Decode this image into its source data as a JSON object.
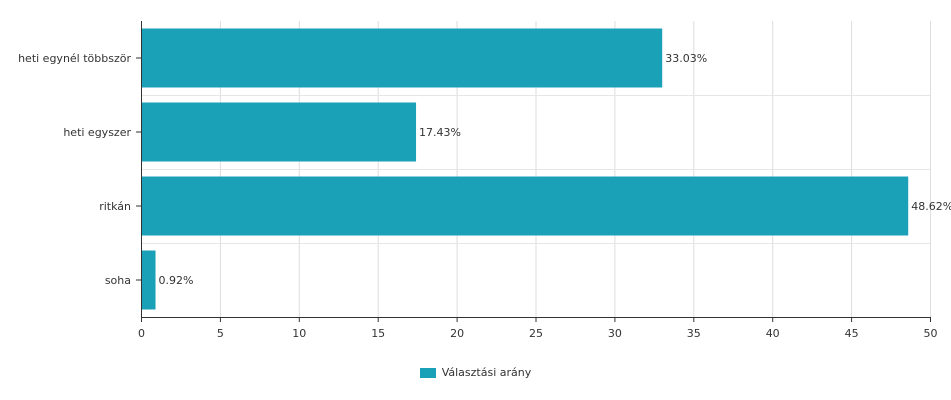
{
  "chart_data": {
    "type": "bar",
    "orientation": "horizontal",
    "categories": [
      "heti egynél többször",
      "heti egyszer",
      "ritkán",
      "soha"
    ],
    "series": [
      {
        "name": "Választási arány",
        "values": [
          33.03,
          17.43,
          48.62,
          0.92
        ]
      }
    ],
    "value_labels": [
      "33.03%",
      "17.43%",
      "48.62%",
      "0.92%"
    ],
    "xlim": [
      0,
      50
    ],
    "x_ticks": [
      0,
      5,
      10,
      15,
      20,
      25,
      30,
      35,
      40,
      45,
      50
    ],
    "grid": true,
    "legend_position": "bottom-center",
    "bar_color": "#1aa1b7"
  },
  "legend": {
    "label": "Választási arány"
  }
}
